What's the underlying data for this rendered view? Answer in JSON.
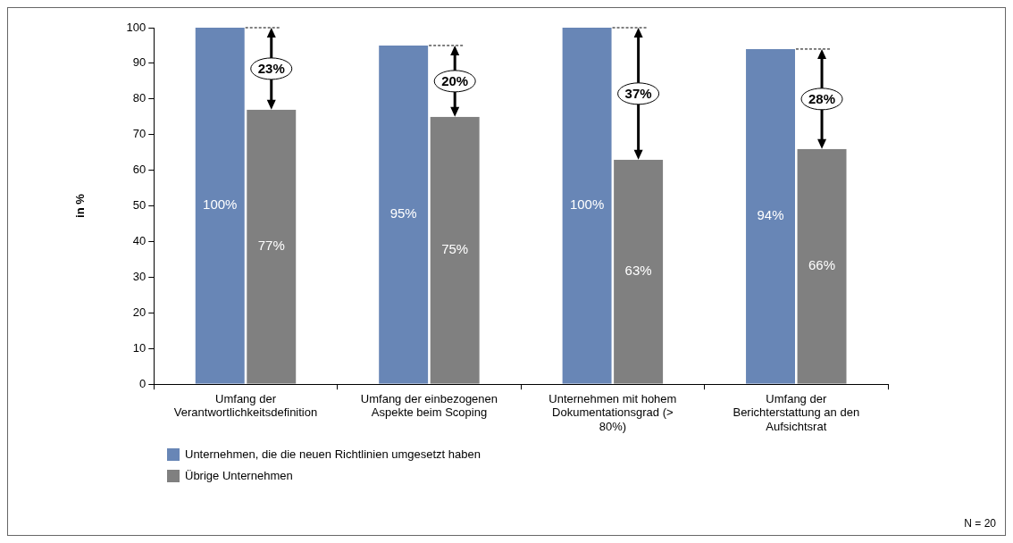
{
  "chart_data": {
    "type": "bar",
    "ylabel": "in %",
    "categories": [
      "Umfang der Verantwortlichkeitsdefinition",
      "Umfang der einbezogenen Aspekte beim Scoping",
      "Unternehmen mit hohem Dokumentationsgrad (> 80%)",
      "Umfang der Berichterstattung an den Aufsichtsrat"
    ],
    "series": [
      {
        "name": "Unternehmen, die die neuen Richtlinien umgesetzt haben",
        "color": "#6886b6",
        "values": [
          100,
          95,
          100,
          94
        ],
        "value_labels": [
          "100%",
          "95%",
          "100%",
          "94%"
        ]
      },
      {
        "name": "Übrige Unternehmen",
        "color": "#808080",
        "values": [
          77,
          75,
          63,
          66
        ],
        "value_labels": [
          "77%",
          "75%",
          "63%",
          "66%"
        ]
      }
    ],
    "ylim": [
      0,
      100
    ],
    "yticks": [
      0,
      10,
      20,
      30,
      40,
      50,
      60,
      70,
      80,
      90,
      100
    ],
    "grid": false,
    "legend": "bottom left",
    "annotations": [
      {
        "text": "23%",
        "x": "Umfang der Verantwortlichkeitsdefinition",
        "y": 88.5
      },
      {
        "text": "20%",
        "x": "Umfang der einbezogenen Aspekte beim Scoping",
        "y": 85
      },
      {
        "text": "37%",
        "x": "Unternehmen mit hohem Dokumentationsgrad (> 80%)",
        "y": 81.5
      },
      {
        "text": "28%",
        "x": "Umfang der Berichterstattung an den Aufsichtsrat",
        "y": 80
      },
      "N = 20"
    ]
  }
}
